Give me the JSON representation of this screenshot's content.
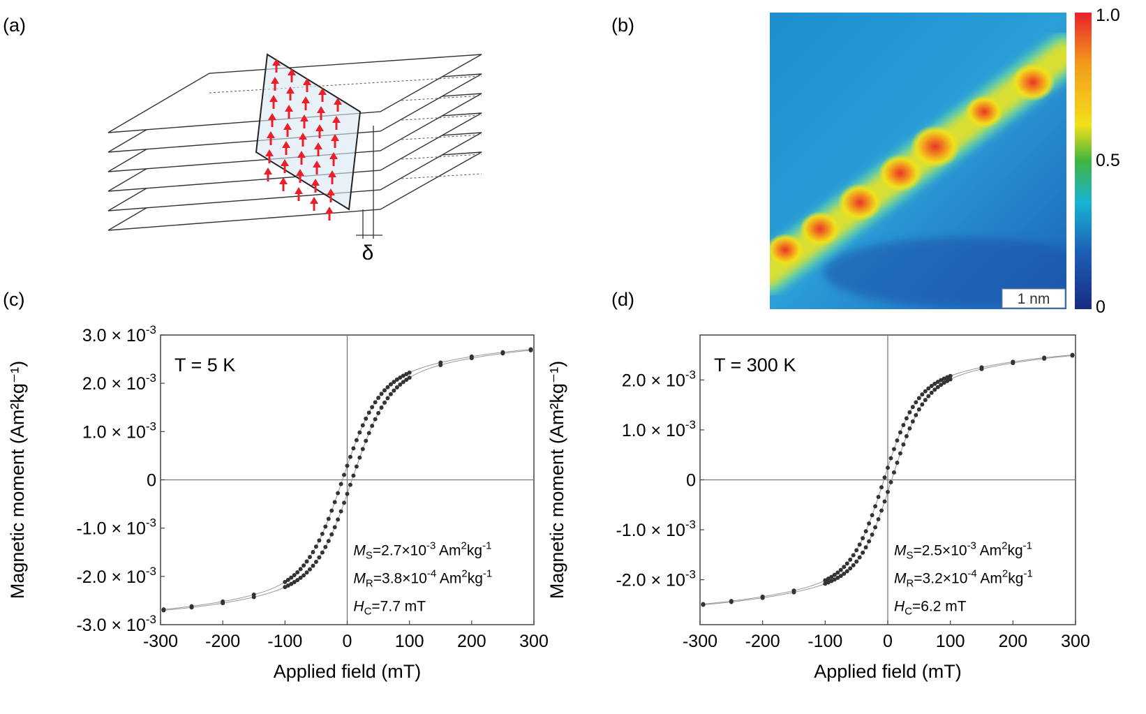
{
  "panel_labels": {
    "a": "(a)",
    "b": "(b)",
    "c": "(c)",
    "d": "(d)"
  },
  "diagram_a": {
    "delta_symbol": "δ",
    "arrow_color": "#e8202a"
  },
  "map_b": {
    "colorbar_ticks": [
      "1.0",
      "0.5",
      "0"
    ],
    "colorbar_colors": [
      "#e8202a",
      "#f39a1c",
      "#f2e01a",
      "#40b440",
      "#19b3d4",
      "#1c62b8",
      "#1a2a82"
    ],
    "scalebar": "1 nm"
  },
  "chart_data": [
    {
      "type": "scatter",
      "panel": "(c)",
      "annotation": "T = 5 K",
      "xlabel": "Applied field (mT)",
      "ylabel": "Magnetic moment (Am²kg⁻¹)",
      "xlim": [
        -300,
        300
      ],
      "ylim": [
        -0.003,
        0.003
      ],
      "xticks": [
        "-300",
        "-200",
        "-100",
        "0",
        "100",
        "200",
        "300"
      ],
      "yticks": [
        {
          "value": 0.003,
          "mant": "3.0 × 10",
          "exp": "-3"
        },
        {
          "value": 0.002,
          "mant": "2.0 × 10",
          "exp": "-3"
        },
        {
          "value": 0.001,
          "mant": "1.0 × 10",
          "exp": "-3"
        },
        {
          "value": 0.0,
          "mant": "0",
          "exp": ""
        },
        {
          "value": -0.001,
          "mant": "-1.0 × 10",
          "exp": "-3"
        },
        {
          "value": -0.002,
          "mant": "-2.0 × 10",
          "exp": "-3"
        },
        {
          "value": -0.003,
          "mant": "-3.0 × 10",
          "exp": "-3"
        }
      ],
      "params": {
        "Ms": 0.0027,
        "Mr": 0.00038,
        "Hc": 7.7
      },
      "stats": [
        {
          "sym": "M",
          "sub": "S",
          "val": "=2.7×10",
          "exp": "-3",
          "unit1": " Am",
          "exp2": "2",
          "unit2": "kg",
          "exp3": "-1"
        },
        {
          "sym": "M",
          "sub": "R",
          "val": "=3.8×10",
          "exp": "-4",
          "unit1": " Am",
          "exp2": "2",
          "unit2": "kg",
          "exp3": "-1"
        },
        {
          "sym": "H",
          "sub": "C",
          "val": "=7.7 mT",
          "exp": "",
          "unit1": "",
          "exp2": "",
          "unit2": "",
          "exp3": ""
        }
      ]
    },
    {
      "type": "scatter",
      "panel": "(d)",
      "annotation": "T = 300 K",
      "xlabel": "Applied field (mT)",
      "ylabel": "Magnetic moment (Am²kg⁻¹)",
      "xlim": [
        -300,
        300
      ],
      "ylim": [
        -0.0029,
        0.0029
      ],
      "xticks": [
        "-300",
        "-200",
        "-100",
        "0",
        "100",
        "200",
        "300"
      ],
      "yticks": [
        {
          "value": 0.002,
          "mant": "2.0 × 10",
          "exp": "-3"
        },
        {
          "value": 0.001,
          "mant": "1.0 × 10",
          "exp": "-3"
        },
        {
          "value": 0.0,
          "mant": "0",
          "exp": ""
        },
        {
          "value": -0.001,
          "mant": "-1.0 × 10",
          "exp": "-3"
        },
        {
          "value": -0.002,
          "mant": "-2.0 × 10",
          "exp": "-3"
        }
      ],
      "params": {
        "Ms": 0.0025,
        "Mr": 0.00032,
        "Hc": 6.2
      },
      "stats": [
        {
          "sym": "M",
          "sub": "S",
          "val": "=2.5×10",
          "exp": "-3",
          "unit1": " Am",
          "exp2": "2",
          "unit2": "kg",
          "exp3": "-1"
        },
        {
          "sym": "M",
          "sub": "R",
          "val": "=3.2×10",
          "exp": "-4",
          "unit1": " Am",
          "exp2": "2",
          "unit2": "kg",
          "exp3": "-1"
        },
        {
          "sym": "H",
          "sub": "C",
          "val": "=6.2 mT",
          "exp": "",
          "unit1": "",
          "exp2": "",
          "unit2": "",
          "exp3": ""
        }
      ]
    }
  ]
}
